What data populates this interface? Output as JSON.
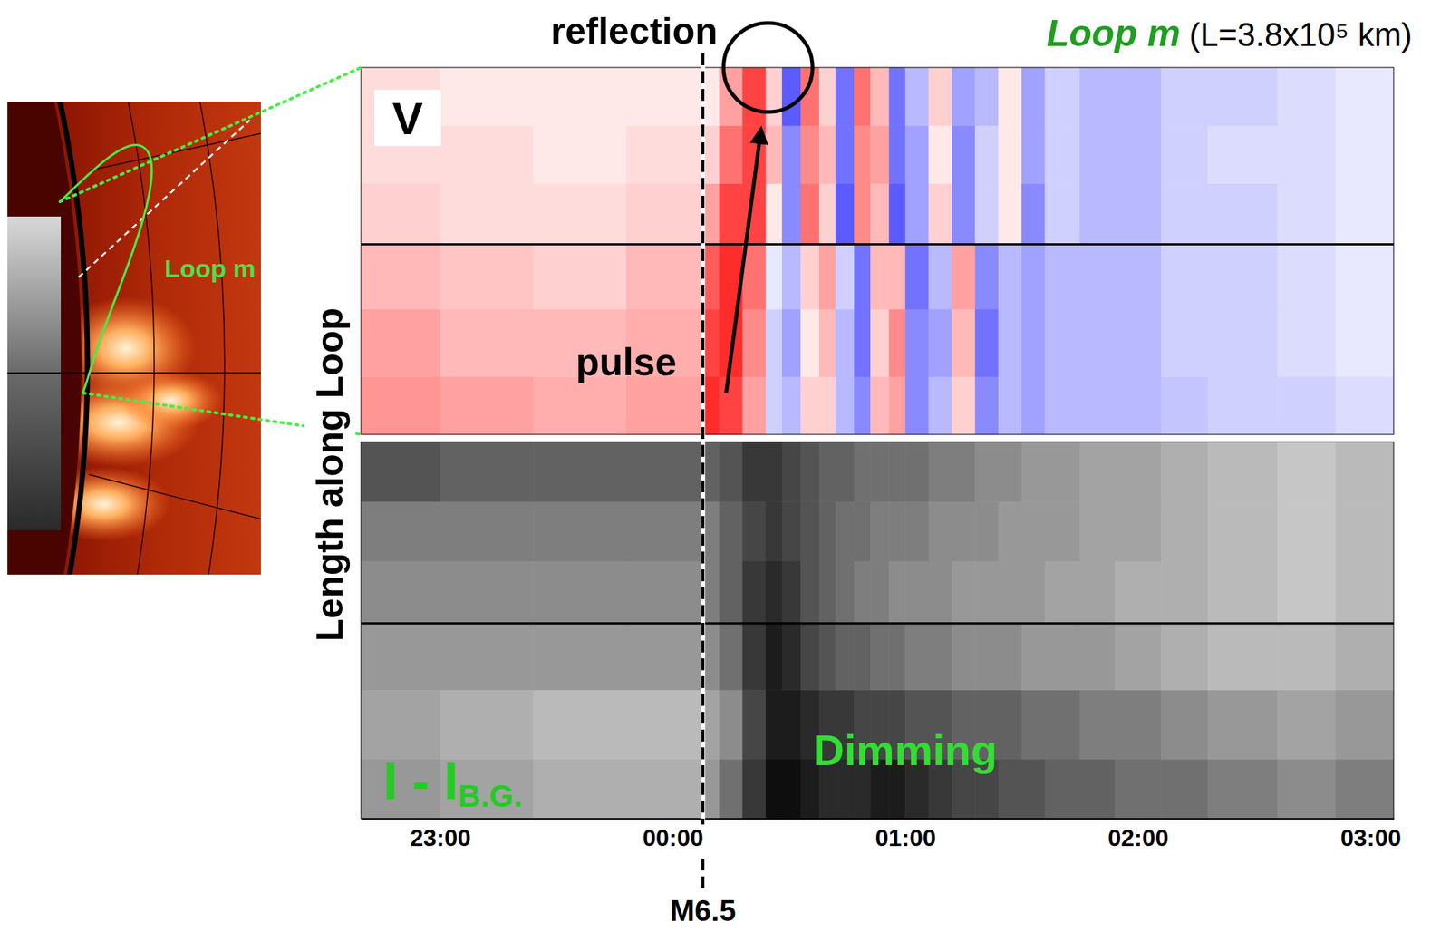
{
  "inset": {
    "label": "Loop m"
  },
  "chart_data": [
    {
      "type": "heatmap",
      "title": "Loop m",
      "subtitle": "(L=3.8x10⁵ km)",
      "panel_label": "V",
      "ylabel": "Length along Loop",
      "xlim": [
        22.66,
        27.1
      ],
      "ylim": [
        0,
        380000
      ],
      "tick_labels": false,
      "zlim": [
        -1,
        1
      ],
      "x_edges": [
        22.66,
        23.0,
        23.4,
        23.8,
        24.13,
        24.2,
        24.3,
        24.4,
        24.47,
        24.55,
        24.63,
        24.7,
        24.78,
        24.85,
        24.93,
        25.0,
        25.1,
        25.2,
        25.3,
        25.4,
        25.5,
        25.6,
        25.75,
        25.9,
        26.1,
        26.3,
        26.6,
        26.85,
        27.1
      ],
      "y_edges": [
        0,
        60000,
        130000,
        197000,
        260000,
        320000,
        380000
      ],
      "values": [
        [
          0.45,
          0.4,
          0.35,
          0.4,
          0.9,
          0.8,
          0.4,
          -0.2,
          -0.3,
          0.2,
          0.2,
          -0.3,
          -0.5,
          0.3,
          0.4,
          -0.5,
          -0.3,
          0.2,
          -0.5,
          -0.3,
          -0.4,
          -0.3,
          -0.3,
          -0.3,
          -0.25,
          -0.2,
          -0.2,
          -0.15
        ],
        [
          0.4,
          0.3,
          0.3,
          0.35,
          0.8,
          0.9,
          0.5,
          -0.2,
          -0.4,
          0.1,
          0.3,
          -0.3,
          -0.6,
          0.2,
          0.5,
          -0.5,
          -0.4,
          0.3,
          -0.6,
          -0.3,
          -0.4,
          -0.3,
          -0.3,
          -0.3,
          -0.2,
          -0.2,
          -0.15,
          -0.1
        ],
        [
          0.3,
          0.25,
          0.2,
          0.3,
          0.7,
          0.9,
          0.6,
          -0.1,
          -0.3,
          0.2,
          0.4,
          -0.2,
          -0.6,
          0.3,
          0.3,
          -0.6,
          -0.3,
          0.4,
          -0.5,
          -0.3,
          -0.4,
          -0.3,
          -0.3,
          -0.3,
          -0.2,
          -0.2,
          -0.15,
          -0.1
        ],
        [
          0.2,
          0.15,
          0.15,
          0.2,
          0.4,
          0.8,
          0.8,
          0.1,
          -0.5,
          0.6,
          0.2,
          -0.7,
          0.5,
          0.3,
          -0.7,
          -0.4,
          0.2,
          -0.5,
          -0.2,
          0.1,
          -0.5,
          -0.2,
          -0.3,
          -0.3,
          -0.2,
          -0.2,
          -0.15,
          -0.1
        ],
        [
          0.15,
          0.15,
          0.1,
          0.15,
          0.2,
          0.6,
          0.8,
          0.3,
          -0.5,
          0.5,
          0.3,
          -0.6,
          0.5,
          0.4,
          -0.6,
          -0.4,
          0.1,
          -0.5,
          -0.2,
          0.1,
          -0.4,
          -0.2,
          -0.3,
          -0.3,
          -0.2,
          -0.15,
          -0.15,
          -0.1
        ],
        [
          0.15,
          0.1,
          0.1,
          0.1,
          0.1,
          0.4,
          0.8,
          0.2,
          -0.7,
          0.6,
          0.2,
          -0.6,
          0.6,
          0.3,
          -0.6,
          -0.3,
          0.2,
          -0.4,
          -0.3,
          0.1,
          -0.4,
          -0.2,
          -0.3,
          -0.3,
          -0.2,
          -0.2,
          -0.15,
          -0.1
        ]
      ],
      "hlines": [
        197000
      ],
      "annotations": [
        {
          "text": "pulse",
          "x": 23.8,
          "y": 72000,
          "color": "#000000",
          "arrow": [
            [
              24.23,
              43000
            ],
            [
              24.38,
              316000
            ]
          ]
        },
        {
          "text": "reflection",
          "x": 24.41,
          "y": 380000,
          "color": "#000000",
          "marker": "circle"
        }
      ]
    },
    {
      "type": "heatmap",
      "panel_label": {
        "text": "I - I",
        "subscript": "B.G."
      },
      "xlim": [
        22.66,
        27.1
      ],
      "ylim": [
        0,
        380000
      ],
      "tick_labels": "x",
      "xticks": [
        {
          "value": 23,
          "label": "23:00"
        },
        {
          "value": 24,
          "label": "00:00"
        },
        {
          "value": 25,
          "label": "01:00"
        },
        {
          "value": 26,
          "label": "02:00"
        },
        {
          "value": 27,
          "label": "03:00"
        }
      ],
      "zlim": [
        -1,
        1
      ],
      "x_edges": [
        22.66,
        23.0,
        23.4,
        23.8,
        24.13,
        24.2,
        24.3,
        24.4,
        24.47,
        24.55,
        24.63,
        24.7,
        24.78,
        24.85,
        24.93,
        25.0,
        25.1,
        25.2,
        25.3,
        25.4,
        25.5,
        25.6,
        25.75,
        25.9,
        26.1,
        26.3,
        26.6,
        26.85,
        27.1
      ],
      "y_edges": [
        0,
        60000,
        130000,
        197000,
        260000,
        320000,
        380000
      ],
      "values": [
        [
          0.1,
          0.2,
          0.3,
          0.3,
          0.1,
          -0.2,
          -0.6,
          -0.9,
          -0.9,
          -0.8,
          -0.7,
          -0.7,
          -0.7,
          -0.8,
          -0.8,
          -0.7,
          -0.6,
          -0.5,
          -0.5,
          -0.4,
          -0.4,
          -0.3,
          -0.3,
          -0.2,
          -0.2,
          -0.1,
          0,
          -0.1
        ],
        [
          0.2,
          0.3,
          0.4,
          0.4,
          0.2,
          0,
          -0.5,
          -0.8,
          -0.8,
          -0.7,
          -0.6,
          -0.6,
          -0.5,
          -0.5,
          -0.5,
          -0.4,
          -0.4,
          -0.3,
          -0.3,
          -0.3,
          -0.2,
          -0.2,
          -0.1,
          -0.1,
          0,
          0.1,
          0.2,
          0.1
        ],
        [
          0.1,
          0.1,
          0.1,
          0.1,
          0,
          -0.2,
          -0.6,
          -0.8,
          -0.7,
          -0.5,
          -0.4,
          -0.3,
          -0.3,
          -0.2,
          -0.2,
          -0.1,
          -0.1,
          0,
          0,
          0,
          0.1,
          0.1,
          0.1,
          0.2,
          0.3,
          0.4,
          0.4,
          0.3
        ],
        [
          0,
          0,
          0,
          0,
          -0.1,
          -0.3,
          -0.6,
          -0.7,
          -0.6,
          -0.4,
          -0.3,
          -0.2,
          -0.1,
          -0.1,
          0,
          0,
          0,
          0.1,
          0.1,
          0.1,
          0.1,
          0.2,
          0.2,
          0.3,
          0.3,
          0.4,
          0.5,
          0.4
        ],
        [
          -0.1,
          -0.1,
          -0.1,
          -0.1,
          -0.1,
          -0.3,
          -0.5,
          -0.6,
          -0.5,
          -0.4,
          -0.3,
          -0.2,
          -0.2,
          -0.1,
          -0.1,
          -0.1,
          0,
          0,
          0,
          0.1,
          0.1,
          0.1,
          0.2,
          0.2,
          0.3,
          0.4,
          0.5,
          0.4
        ],
        [
          -0.4,
          -0.3,
          -0.3,
          -0.3,
          -0.3,
          -0.4,
          -0.6,
          -0.6,
          -0.5,
          -0.4,
          -0.3,
          -0.3,
          -0.2,
          -0.2,
          -0.2,
          -0.2,
          -0.1,
          -0.1,
          0,
          0,
          0.1,
          0.1,
          0.2,
          0.2,
          0.3,
          0.4,
          0.5,
          0.4
        ]
      ],
      "hlines": [
        197000
      ],
      "annotations": [
        {
          "text": "Dimming",
          "x": 25.0,
          "y": 65000,
          "color": "#33dd33"
        }
      ],
      "event": {
        "x": 24.13,
        "label": "M6.5"
      }
    }
  ]
}
